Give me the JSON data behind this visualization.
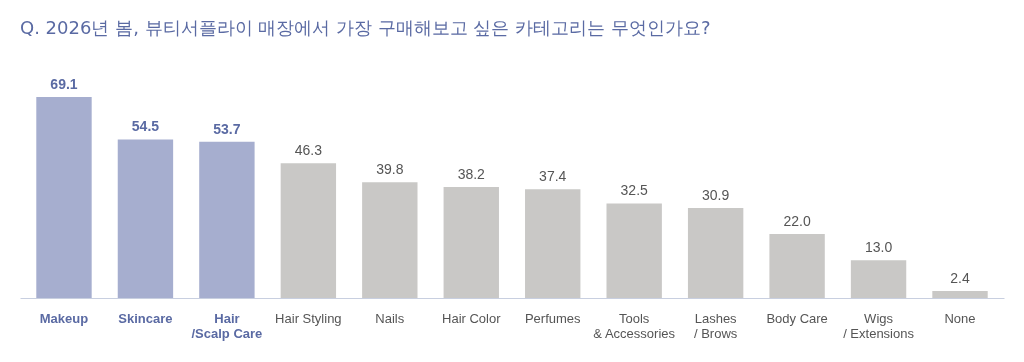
{
  "chart_data": {
    "type": "bar",
    "title": "Q. 2026년 봄, 뷰티서플라이 매장에서 가장 구매해보고 싶은 카테고리는 무엇인가요?",
    "categories": [
      "Makeup",
      "Skincare",
      "Hair\n/Scalp Care",
      "Hair Styling",
      "Nails",
      "Hair Color",
      "Perfumes",
      "Tools\n& Accessories",
      "Lashes\n/ Brows",
      "Body Care",
      "Wigs\n/ Extensions",
      "None"
    ],
    "values": [
      69.1,
      54.5,
      53.7,
      46.3,
      39.8,
      38.2,
      37.4,
      32.5,
      30.9,
      22.0,
      13.0,
      2.4
    ],
    "colors": [
      "#a6aecf",
      "#a6aecf",
      "#a6aecf",
      "#c9c8c6",
      "#c9c8c6",
      "#c9c8c6",
      "#c9c8c6",
      "#c9c8c6",
      "#c9c8c6",
      "#c9c8c6",
      "#c9c8c6",
      "#c9c8c6"
    ],
    "value_labels": [
      "69.1",
      "54.5",
      "53.7",
      "46.3",
      "39.8",
      "38.2",
      "37.4",
      "32.5",
      "30.9",
      "22.0",
      "13.0",
      "2.4"
    ],
    "grid": false
  }
}
